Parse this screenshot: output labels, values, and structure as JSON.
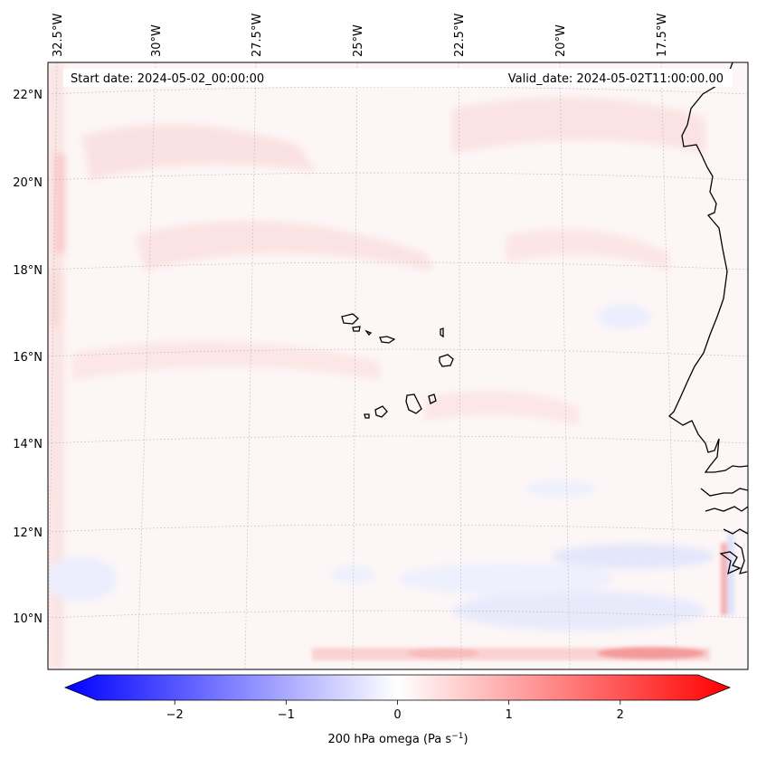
{
  "map": {
    "start_date": "Start date: 2024-05-02_00:00:00",
    "valid_date": "Valid_date: 2024-05-02T11:00:00.00",
    "lon_labels": [
      "32.5°W",
      "30°W",
      "27.5°W",
      "25°W",
      "22.5°W",
      "20°W",
      "17.5°W"
    ],
    "lat_labels": [
      "22°N",
      "20°N",
      "18°N",
      "16°N",
      "14°N",
      "12°N",
      "10°N"
    ]
  },
  "colorbar": {
    "label": "200 hPa omega (Pa s",
    "label_sup": "−1",
    "label_close": ")",
    "ticks": [
      "−2",
      "−1",
      "0",
      "1",
      "2"
    ],
    "tick_values": [
      -2,
      -1,
      0,
      1,
      2
    ],
    "vmin": -2.7,
    "vmax": 2.7,
    "color_negative": "#0000ff",
    "color_zero": "#ffffff",
    "color_positive": "#ff0000"
  }
}
